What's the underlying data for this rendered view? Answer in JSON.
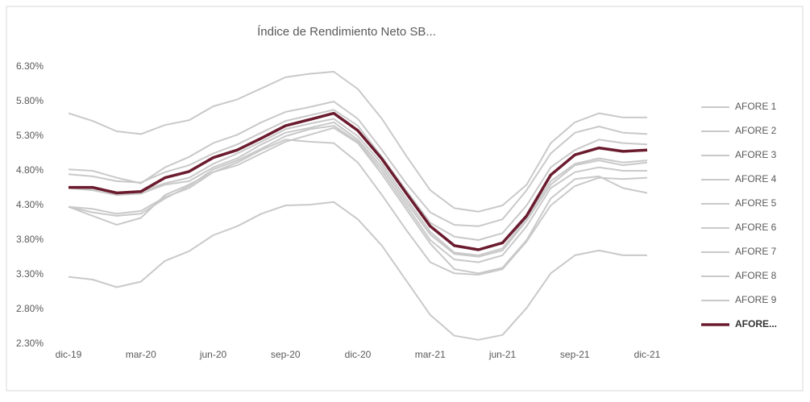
{
  "chart_data": {
    "type": "line",
    "title": "Índice de Rendimiento Neto SB...",
    "categories": [
      "dic-19",
      null,
      null,
      "mar-20",
      null,
      null,
      "jun-20",
      null,
      null,
      "sep-20",
      null,
      null,
      "dic-20",
      null,
      null,
      "mar-21",
      null,
      null,
      "jun-21",
      null,
      null,
      "sep-21",
      null,
      null,
      "dic-21"
    ],
    "ylim": [
      2.3,
      6.3
    ],
    "yticks": [
      {
        "value": 2.3,
        "label": "2.30%"
      },
      {
        "value": 2.8,
        "label": "2.80%"
      },
      {
        "value": 3.3,
        "label": "3.30%"
      },
      {
        "value": 3.8,
        "label": "3.80%"
      },
      {
        "value": 4.3,
        "label": "4.30%"
      },
      {
        "value": 4.8,
        "label": "4.80%"
      },
      {
        "value": 5.3,
        "label": "5.30%"
      },
      {
        "value": 5.8,
        "label": "5.80%"
      },
      {
        "value": 6.3,
        "label": "6.30%"
      }
    ],
    "grid": false,
    "legend": "right",
    "series": [
      {
        "name": "AFORE 1",
        "color": "#c9c9c9",
        "values": [
          5.63,
          5.52,
          5.37,
          5.33,
          5.46,
          5.53,
          5.73,
          5.83,
          5.99,
          6.15,
          6.2,
          6.23,
          5.98,
          5.55,
          5.02,
          4.52,
          4.26,
          4.21,
          4.3,
          4.6,
          5.2,
          5.5,
          5.63,
          5.57,
          5.57
        ]
      },
      {
        "name": "AFORE 2",
        "color": "#c9c9c9",
        "values": [
          4.82,
          4.8,
          4.7,
          4.62,
          4.85,
          5.0,
          5.2,
          5.32,
          5.5,
          5.65,
          5.72,
          5.8,
          5.55,
          5.1,
          4.62,
          4.2,
          4.02,
          4.0,
          4.1,
          4.52,
          5.05,
          5.35,
          5.44,
          5.35,
          5.33
        ]
      },
      {
        "name": "AFORE 3",
        "color": "#c9c9c9",
        "values": [
          4.75,
          4.72,
          4.65,
          4.63,
          4.78,
          4.88,
          5.05,
          5.18,
          5.35,
          5.52,
          5.6,
          5.68,
          5.45,
          5.0,
          4.52,
          4.05,
          3.85,
          3.8,
          3.9,
          4.3,
          4.85,
          5.1,
          5.25,
          5.2,
          5.18
        ]
      },
      {
        "name": "AFORE 4",
        "color": "#c9c9c9",
        "values": [
          4.28,
          4.2,
          4.15,
          4.18,
          4.4,
          4.58,
          4.82,
          4.95,
          5.12,
          5.3,
          5.4,
          5.45,
          5.22,
          4.8,
          4.3,
          3.8,
          3.52,
          3.48,
          3.58,
          4.0,
          4.55,
          4.78,
          4.85,
          4.8,
          4.8
        ]
      },
      {
        "name": "AFORE 5",
        "color": "#c9c9c9",
        "values": [
          4.28,
          4.15,
          4.02,
          4.12,
          4.45,
          4.6,
          4.78,
          4.88,
          5.05,
          5.22,
          5.32,
          5.42,
          5.2,
          4.75,
          4.25,
          3.75,
          3.38,
          3.32,
          3.4,
          3.8,
          4.4,
          4.68,
          4.72,
          4.55,
          4.48
        ]
      },
      {
        "name": "AFORE 6",
        "color": "#c9c9c9",
        "values": [
          4.55,
          4.52,
          4.45,
          4.47,
          4.6,
          4.65,
          4.85,
          4.98,
          5.18,
          5.35,
          5.42,
          5.5,
          5.25,
          4.85,
          4.35,
          3.88,
          3.6,
          3.56,
          3.65,
          4.08,
          4.6,
          4.88,
          4.95,
          4.88,
          4.92
        ]
      },
      {
        "name": "AFORE 7",
        "color": "#c9c9c9",
        "values": [
          4.28,
          4.25,
          4.18,
          4.22,
          4.42,
          4.55,
          4.78,
          4.92,
          5.1,
          5.25,
          5.22,
          5.2,
          4.92,
          4.45,
          3.95,
          3.48,
          3.32,
          3.3,
          3.38,
          3.78,
          4.3,
          4.58,
          4.7,
          4.68,
          4.7
        ]
      },
      {
        "name": "AFORE 8",
        "color": "#c9c9c9",
        "values": [
          4.56,
          4.54,
          4.48,
          4.5,
          4.62,
          4.7,
          4.9,
          5.05,
          5.22,
          5.4,
          5.48,
          5.55,
          5.3,
          4.9,
          4.4,
          3.92,
          3.62,
          3.58,
          3.68,
          4.12,
          4.65,
          4.9,
          4.98,
          4.92,
          4.95
        ]
      },
      {
        "name": "AFORE 9",
        "color": "#c9c9c9",
        "values": [
          3.27,
          3.23,
          3.12,
          3.2,
          3.5,
          3.64,
          3.87,
          4.0,
          4.18,
          4.3,
          4.31,
          4.35,
          4.1,
          3.72,
          3.22,
          2.72,
          2.42,
          2.36,
          2.43,
          2.82,
          3.32,
          3.58,
          3.65,
          3.58,
          3.58
        ]
      },
      {
        "name": "AFORE...",
        "color": "#6b1b2e",
        "values": [
          4.56,
          4.56,
          4.48,
          4.5,
          4.7,
          4.79,
          4.99,
          5.1,
          5.27,
          5.45,
          5.54,
          5.63,
          5.38,
          4.97,
          4.48,
          4.0,
          3.72,
          3.66,
          3.76,
          4.15,
          4.74,
          5.03,
          5.13,
          5.08,
          5.1
        ]
      }
    ]
  }
}
